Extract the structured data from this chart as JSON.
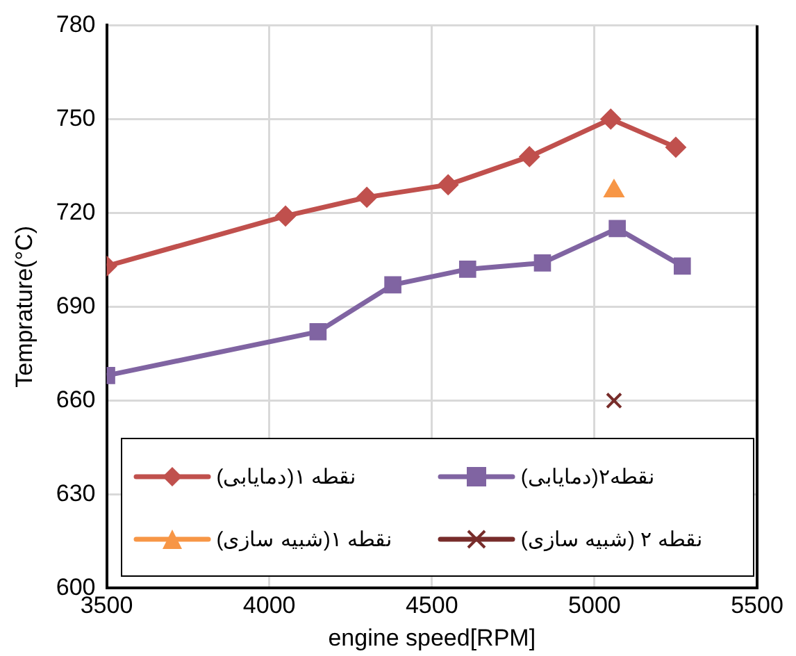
{
  "chart_data": {
    "type": "line",
    "xlabel": "engine speed[RPM]",
    "ylabel": "Temprature(°C)",
    "xlim": [
      3500,
      5500
    ],
    "xticks": [
      3500,
      4000,
      4500,
      5000,
      5500
    ],
    "ylim": [
      600,
      780
    ],
    "yticks": [
      600,
      630,
      660,
      690,
      720,
      750,
      780
    ],
    "grid": true,
    "legend": "bottom",
    "line_style": "solid",
    "series": [
      {
        "name": "نقطه ۱(دمایابی)",
        "color": "#c0504d",
        "marker": "diamond",
        "x": [
          3500,
          4050,
          4300,
          4550,
          4800,
          5050,
          5250
        ],
        "values": [
          703,
          719,
          725,
          729,
          738,
          750,
          741
        ]
      },
      {
        "name": "نقطه۲(دمایابی)",
        "color": "#8064a2",
        "marker": "square",
        "x": [
          3500,
          4150,
          4380,
          4610,
          4840,
          5070,
          5270
        ],
        "values": [
          668,
          682,
          697,
          702,
          704,
          715,
          703
        ]
      },
      {
        "name": "نقطه ۱(شبیه سازی)",
        "type": "scatter",
        "color": "#f79646",
        "marker": "triangle",
        "x": [
          5060
        ],
        "values": [
          727
        ]
      },
      {
        "name": "نقطه ۲ (شبیه سازی)",
        "type": "scatter",
        "color": "#772c2a",
        "marker": "cross",
        "x": [
          5060
        ],
        "values": [
          660
        ]
      }
    ]
  }
}
